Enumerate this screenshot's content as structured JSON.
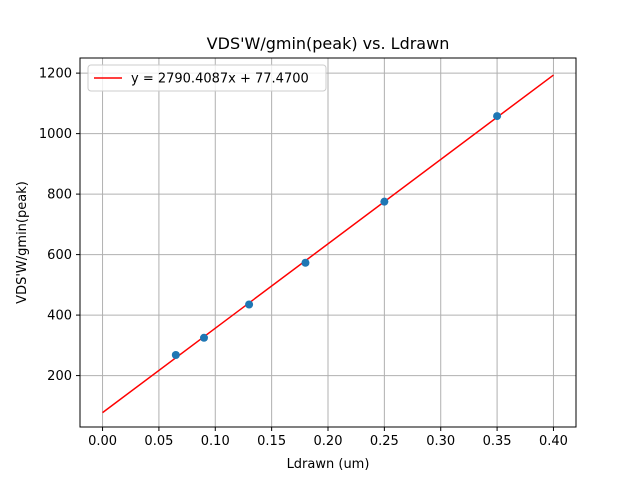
{
  "chart_data": {
    "type": "scatter",
    "title": "VDS'W/gmin(peak) vs. Ldrawn",
    "xlabel": "Ldrawn (um)",
    "ylabel": "VDS'W/gmin(peak)",
    "xlim": [
      -0.02,
      0.42
    ],
    "ylim": [
      30,
      1250
    ],
    "x_ticks": [
      0.0,
      0.05,
      0.1,
      0.15,
      0.2,
      0.25,
      0.3,
      0.35,
      0.4
    ],
    "x_tick_labels": [
      "0.00",
      "0.05",
      "0.10",
      "0.15",
      "0.20",
      "0.25",
      "0.30",
      "0.35",
      "0.40"
    ],
    "y_ticks": [
      200,
      400,
      600,
      800,
      1000,
      1200
    ],
    "y_tick_labels": [
      "200",
      "400",
      "600",
      "800",
      "1000",
      "1200"
    ],
    "grid": true,
    "legend_position": "top-left",
    "series": [
      {
        "kind": "scatter",
        "color": "#1f77b4",
        "points": [
          {
            "x": 0.065,
            "y": 268
          },
          {
            "x": 0.09,
            "y": 325
          },
          {
            "x": 0.13,
            "y": 435
          },
          {
            "x": 0.18,
            "y": 573
          },
          {
            "x": 0.25,
            "y": 775
          },
          {
            "x": 0.35,
            "y": 1058
          }
        ]
      },
      {
        "kind": "line",
        "name": "y = 2790.4087x + 77.4700",
        "color": "#ff0000",
        "slope": 2790.4087,
        "intercept": 77.47,
        "x_range": [
          0.0,
          0.4
        ]
      }
    ]
  }
}
